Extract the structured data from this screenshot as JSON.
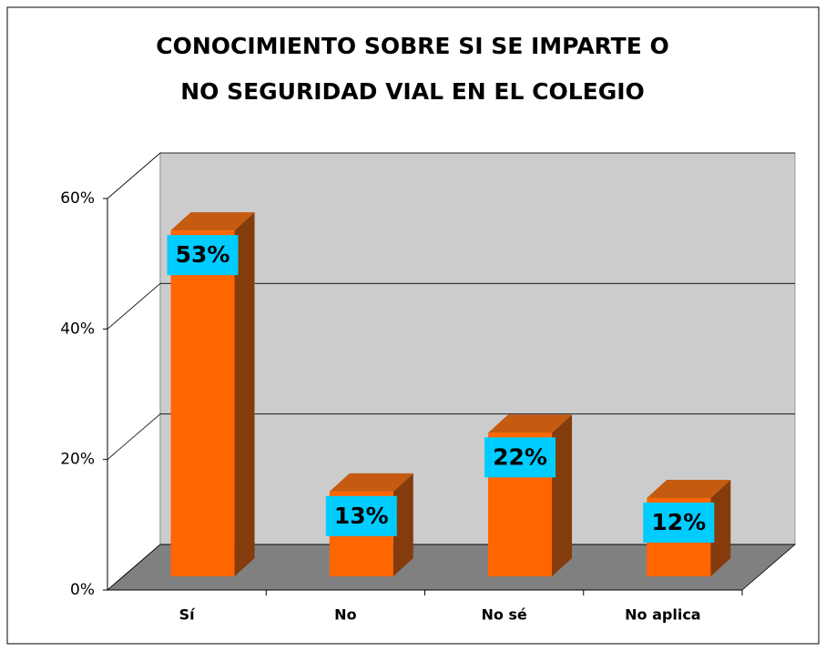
{
  "chart_data": {
    "type": "bar3d",
    "title": [
      "CONOCIMIENTO SOBRE SI SE IMPARTE O",
      "NO SEGURIDAD VIAL EN EL COLEGIO"
    ],
    "categories": [
      "Sí",
      "No",
      "No sé",
      "No aplica"
    ],
    "values": [
      53,
      13,
      22,
      12
    ],
    "value_labels": [
      "53%",
      "13%",
      "22%",
      "12%"
    ],
    "color": "#ff6600",
    "label_color": "#00ccff",
    "ylim": [
      0,
      60
    ],
    "yticks": [
      {
        "value": 0,
        "label": "0%"
      },
      {
        "value": 20,
        "label": "20%"
      },
      {
        "value": 40,
        "label": "40%"
      },
      {
        "value": 60,
        "label": "60%"
      }
    ],
    "grid": true
  }
}
